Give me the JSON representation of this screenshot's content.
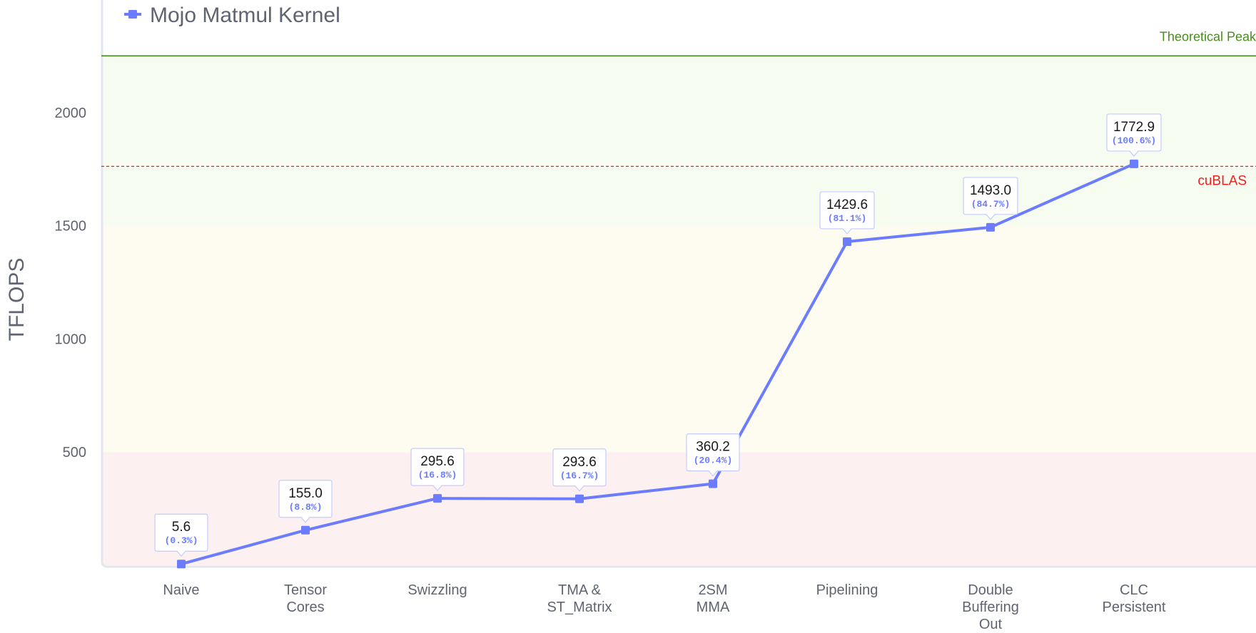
{
  "chart_data": {
    "type": "line",
    "title": "",
    "xlabel": "",
    "ylabel": "TFLOPS",
    "ylim": [
      0,
      2260
    ],
    "yticks": [
      500,
      1000,
      1500,
      2000
    ],
    "grid": false,
    "legend": {
      "position": "top-left",
      "entries": [
        "Mojo Matmul Kernel"
      ]
    },
    "categories": [
      [
        "Naive"
      ],
      [
        "Tensor",
        "Cores"
      ],
      [
        "Swizzling"
      ],
      [
        "TMA &",
        "ST_Matrix"
      ],
      [
        "2SM",
        "MMA"
      ],
      [
        "Pipelining"
      ],
      [
        "Double",
        "Buffering",
        "Out"
      ],
      [
        "CLC",
        "Persistent"
      ]
    ],
    "series": [
      {
        "name": "Mojo Matmul Kernel",
        "values": [
          5.6,
          155.0,
          295.6,
          293.6,
          360.2,
          1429.6,
          1493.0,
          1772.9
        ],
        "value_labels": [
          "5.6",
          "155.0",
          "295.6",
          "293.6",
          "360.2",
          "1429.6",
          "1493.0",
          "1772.9"
        ],
        "percent_labels": [
          "(0.3%)",
          "(8.8%)",
          "(16.8%)",
          "(16.7%)",
          "(20.4%)",
          "(81.1%)",
          "(84.7%)",
          "(100.6%)"
        ],
        "color": "#6b7cff"
      }
    ],
    "reference_lines": [
      {
        "name": "Theoretical Peak",
        "value": 2250,
        "color": "#4a8c1f",
        "style": "solid"
      },
      {
        "name": "cuBLAS",
        "value": 1762,
        "color": "#ee2222",
        "style": "dashed"
      }
    ],
    "background_bands": [
      {
        "from": 0,
        "to": 500,
        "color": "#fdf0f1"
      },
      {
        "from": 500,
        "to": 1500,
        "color": "#fefbf0"
      },
      {
        "from": 1500,
        "to": 2250,
        "color": "#f7fcf1"
      }
    ]
  }
}
